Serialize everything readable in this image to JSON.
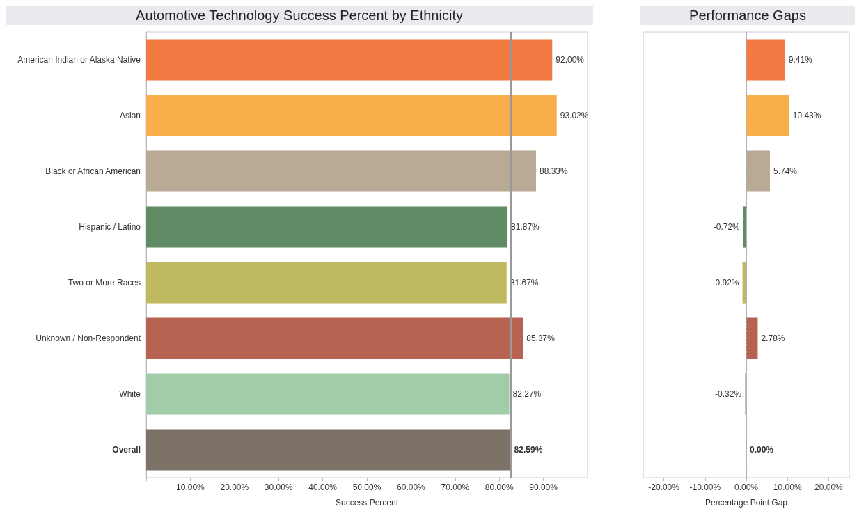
{
  "chart_data": [
    {
      "type": "bar",
      "orientation": "horizontal",
      "title": "Automotive Technology Success Percent by Ethnicity",
      "xlabel": "Success Percent",
      "categories": [
        "American Indian or Alaska Native",
        "Asian",
        "Black or African American",
        "Hispanic / Latino",
        "Two or More Races",
        "Unknown / Non-Respondent",
        "White",
        "Overall"
      ],
      "values": [
        92.0,
        93.02,
        88.33,
        81.87,
        81.67,
        85.37,
        82.27,
        82.59
      ],
      "value_labels": [
        "92.00%",
        "93.02%",
        "88.33%",
        "81.87%",
        "81.67%",
        "85.37%",
        "82.27%",
        "82.59%"
      ],
      "colors": [
        "#f47a43",
        "#f9ae4c",
        "#b8aa95",
        "#5f8b65",
        "#bfba5f",
        "#b66352",
        "#a1cca8",
        "#7c7268"
      ],
      "xlim": [
        0,
        100
      ],
      "xticks": [
        {
          "value": 0,
          "label": null
        },
        {
          "value": 10,
          "label": "10.00%"
        },
        {
          "value": 20,
          "label": "20.00%"
        },
        {
          "value": 30,
          "label": "30.00%"
        },
        {
          "value": 40,
          "label": "40.00%"
        },
        {
          "value": 50,
          "label": "50.00%"
        },
        {
          "value": 60,
          "label": "60.00%"
        },
        {
          "value": 70,
          "label": "70.00%"
        },
        {
          "value": 80,
          "label": "80.00%"
        },
        {
          "value": 90,
          "label": "90.00%"
        },
        {
          "value": 100,
          "label": null
        }
      ],
      "ref_lines": [
        {
          "axis": "x",
          "value": 82.59,
          "color": "#999999",
          "line_style": "solid"
        }
      ],
      "grid": false
    },
    {
      "type": "bar",
      "orientation": "horizontal",
      "title": "Performance Gaps",
      "xlabel": "Percentage Point Gap",
      "categories": [
        "American Indian or Alaska Native",
        "Asian",
        "Black or African American",
        "Hispanic / Latino",
        "Two or More Races",
        "Unknown / Non-Respondent",
        "White",
        "Overall"
      ],
      "values": [
        9.41,
        10.43,
        5.74,
        -0.72,
        -0.92,
        2.78,
        -0.32,
        0.0
      ],
      "value_labels": [
        "9.41%",
        "10.43%",
        "5.74%",
        "-0.72%",
        "-0.92%",
        "2.78%",
        "-0.32%",
        "0.00%"
      ],
      "colors": [
        "#f47a43",
        "#f9ae4c",
        "#b8aa95",
        "#5f8b65",
        "#bfba5f",
        "#b66352",
        "#a1cca8",
        "#7c7268"
      ],
      "xlim": [
        -25,
        25
      ],
      "xticks": [
        {
          "value": -20,
          "label": "-20.00%"
        },
        {
          "value": -10,
          "label": "-10.00%"
        },
        {
          "value": 0,
          "label": "0.00%"
        },
        {
          "value": 10,
          "label": "10.00%"
        },
        {
          "value": 20,
          "label": "20.00%"
        }
      ],
      "ref_lines": [
        {
          "axis": "x",
          "value": 0,
          "color": "#aaaaaa",
          "line_style": "dotted"
        }
      ],
      "tick_labels": "x",
      "grid": false
    }
  ]
}
